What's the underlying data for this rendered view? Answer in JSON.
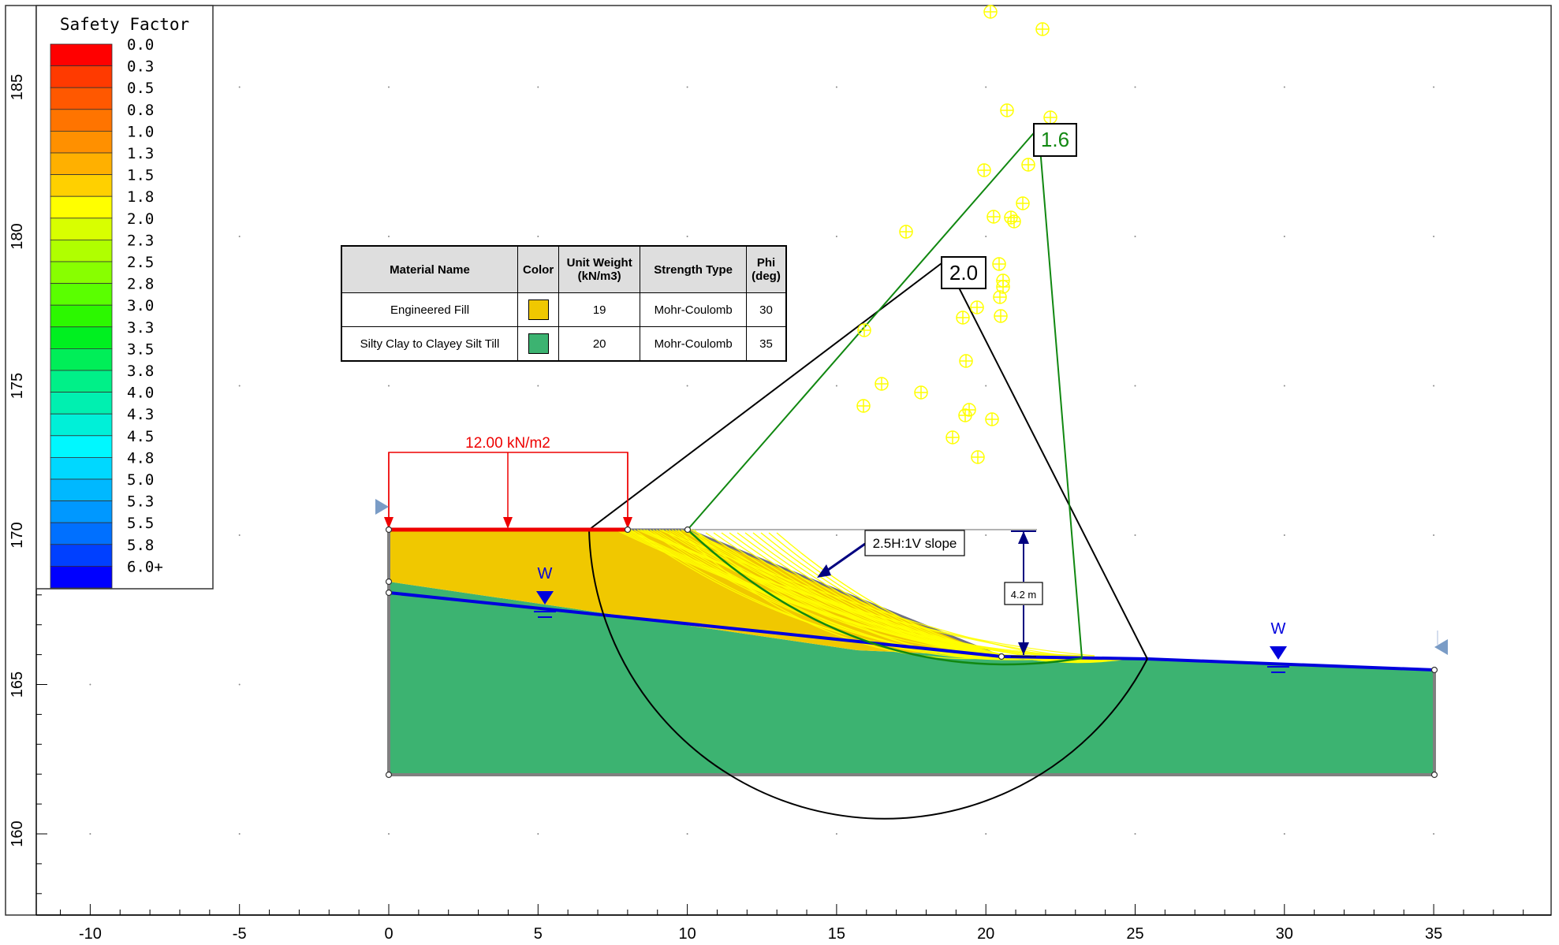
{
  "legend": {
    "title": "Safety Factor",
    "labels": [
      "0.0",
      "0.3",
      "0.5",
      "0.8",
      "1.0",
      "1.3",
      "1.5",
      "1.8",
      "2.0",
      "2.3",
      "2.5",
      "2.8",
      "3.0",
      "3.3",
      "3.5",
      "3.8",
      "4.0",
      "4.3",
      "4.5",
      "4.8",
      "5.0",
      "5.3",
      "5.5",
      "5.8",
      "6.0+"
    ],
    "colors": [
      "#ff0000",
      "#ff3a00",
      "#ff5800",
      "#ff7400",
      "#ff9000",
      "#ffb000",
      "#ffd000",
      "#ffff00",
      "#d8ff00",
      "#b0ff00",
      "#88ff00",
      "#5aff00",
      "#2cf800",
      "#00f020",
      "#00ee58",
      "#00f088",
      "#00f0b0",
      "#00f0d8",
      "#00f8ff",
      "#00d8ff",
      "#00b8ff",
      "#0098ff",
      "#0070ff",
      "#0040ff",
      "#0000ff"
    ]
  },
  "x_axis": {
    "ticks": [
      "-10",
      "-5",
      "0",
      "5",
      "10",
      "15",
      "20",
      "25",
      "30",
      "35"
    ]
  },
  "y_axis": {
    "ticks": [
      "160",
      "165",
      "170",
      "175",
      "180",
      "185"
    ]
  },
  "material_table": {
    "headers": [
      "Material Name",
      "Color",
      "Unit Weight (kN/m3)",
      "Strength Type",
      "Phi (deg)"
    ],
    "rows": [
      {
        "name": "Engineered Fill",
        "color": "#f0c800",
        "unit_weight": "19",
        "strength_type": "Mohr-Coulomb",
        "phi": "30"
      },
      {
        "name": "Silty Clay to Clayey Silt Till",
        "color": "#3cb371",
        "unit_weight": "20",
        "strength_type": "Mohr-Coulomb",
        "phi": "35"
      }
    ]
  },
  "annotations": {
    "load": "12.00 kN/m2",
    "slope": "2.5H:1V slope",
    "height": "4.2 m",
    "water_symbol": "W",
    "sf_black": "2.0",
    "sf_green": "1.6"
  },
  "colors": {
    "fill_material": "#f0c800",
    "till_material": "#3cb371",
    "water_table": "#0000dd",
    "load": "#ee0000",
    "slip_surface_black": "#000000",
    "slip_surface_green": "#118811",
    "slip_family": "#ffff00",
    "dimension": "#000080"
  }
}
